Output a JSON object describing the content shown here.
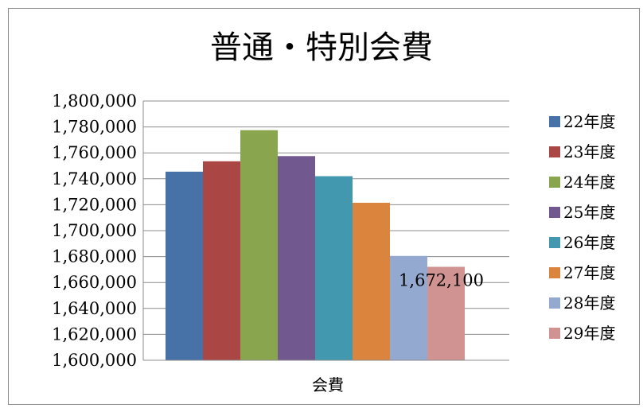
{
  "chart_data": {
    "type": "bar",
    "title": "普通・特別会費",
    "categories": [
      "会費"
    ],
    "series": [
      {
        "name": "22年度",
        "values": [
          1745500
        ],
        "color": "#4672a8"
      },
      {
        "name": "23年度",
        "values": [
          1753500
        ],
        "color": "#aa4643"
      },
      {
        "name": "24年度",
        "values": [
          1777500
        ],
        "color": "#89a54e"
      },
      {
        "name": "25年度",
        "values": [
          1757500
        ],
        "color": "#71588f"
      },
      {
        "name": "26年度",
        "values": [
          1742000
        ],
        "color": "#4198af"
      },
      {
        "name": "27年度",
        "values": [
          1721500
        ],
        "color": "#db843d"
      },
      {
        "name": "28年度",
        "values": [
          1680500
        ],
        "color": "#93a9cf"
      },
      {
        "name": "29年度",
        "values": [
          1672100
        ],
        "color": "#d09392"
      }
    ],
    "data_labels": [
      {
        "series": "29年度",
        "text": "1,672,100"
      }
    ],
    "ylim": [
      1600000,
      1800000
    ],
    "yticks": [
      "1,600,000",
      "1,620,000",
      "1,640,000",
      "1,660,000",
      "1,680,000",
      "1,700,000",
      "1,720,000",
      "1,740,000",
      "1,760,000",
      "1,780,000",
      "1,800,000"
    ],
    "ytick_values": [
      1600000,
      1620000,
      1640000,
      1660000,
      1680000,
      1700000,
      1720000,
      1740000,
      1760000,
      1780000,
      1800000
    ],
    "grid": true,
    "legend": "right"
  }
}
